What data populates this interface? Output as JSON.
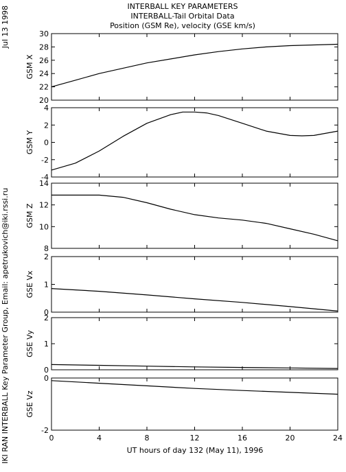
{
  "side_date": "Jul 13 1998",
  "side_credit": "IKI RAN INTERBALL Key Parameter Group, Email: apetrukovich@iki.rssi.ru",
  "chart_data": {
    "type": "line",
    "title": [
      "INTERBALL KEY PARAMETERS",
      "INTERBALL-Tail Orbital Data",
      "Position (GSM Re), velocity (GSE km/s)"
    ],
    "xlabel": "UT hours of day 132 (May 11), 1996",
    "xlim": [
      0,
      24
    ],
    "x_ticks": [
      0,
      4,
      8,
      12,
      16,
      20,
      24
    ],
    "panels": [
      {
        "ylabel": "GSM X",
        "ylim": [
          20,
          30
        ],
        "y_ticks": [
          20,
          22,
          24,
          26,
          28,
          30
        ],
        "x": [
          0,
          2,
          4,
          6,
          8,
          10,
          12,
          14,
          16,
          18,
          20,
          22,
          24
        ],
        "values": [
          22.0,
          23.0,
          24.0,
          24.8,
          25.6,
          26.2,
          26.8,
          27.3,
          27.7,
          28.0,
          28.2,
          28.3,
          28.4
        ]
      },
      {
        "ylabel": "GSM Y",
        "ylim": [
          -4,
          4
        ],
        "y_ticks": [
          -4,
          -2,
          0,
          2,
          4
        ],
        "x": [
          0,
          2,
          4,
          6,
          8,
          10,
          11,
          12,
          13,
          14,
          16,
          18,
          20,
          21,
          22,
          24
        ],
        "values": [
          -3.2,
          -2.4,
          -1.0,
          0.7,
          2.2,
          3.2,
          3.5,
          3.5,
          3.4,
          3.1,
          2.2,
          1.3,
          0.8,
          0.75,
          0.8,
          1.3
        ]
      },
      {
        "ylabel": "GSM Z",
        "ylim": [
          8,
          14
        ],
        "y_ticks": [
          8,
          10,
          12,
          14
        ],
        "x": [
          0,
          2,
          4,
          6,
          8,
          10,
          12,
          14,
          16,
          18,
          20,
          22,
          24
        ],
        "values": [
          12.9,
          12.9,
          12.9,
          12.7,
          12.2,
          11.6,
          11.1,
          10.8,
          10.6,
          10.3,
          9.8,
          9.3,
          8.7
        ]
      },
      {
        "ylabel": "GSE Vx",
        "ylim": [
          0,
          2
        ],
        "y_ticks": [
          0,
          1,
          2
        ],
        "x": [
          0,
          4,
          8,
          12,
          16,
          20,
          24
        ],
        "values": [
          0.85,
          0.75,
          0.62,
          0.48,
          0.35,
          0.2,
          0.04
        ]
      },
      {
        "ylabel": "GSE Vy",
        "ylim": [
          0,
          2
        ],
        "y_ticks": [
          0,
          1,
          2
        ],
        "x": [
          0,
          4,
          8,
          12,
          16,
          20,
          24
        ],
        "values": [
          0.2,
          0.17,
          0.14,
          0.11,
          0.09,
          0.07,
          0.05
        ]
      },
      {
        "ylabel": "GSE Vz",
        "ylim": [
          -2,
          0
        ],
        "y_ticks": [
          -2,
          0
        ],
        "x": [
          0,
          4,
          8,
          12,
          16,
          20,
          24
        ],
        "values": [
          -0.1,
          -0.2,
          -0.3,
          -0.4,
          -0.48,
          -0.55,
          -0.62
        ]
      }
    ]
  }
}
